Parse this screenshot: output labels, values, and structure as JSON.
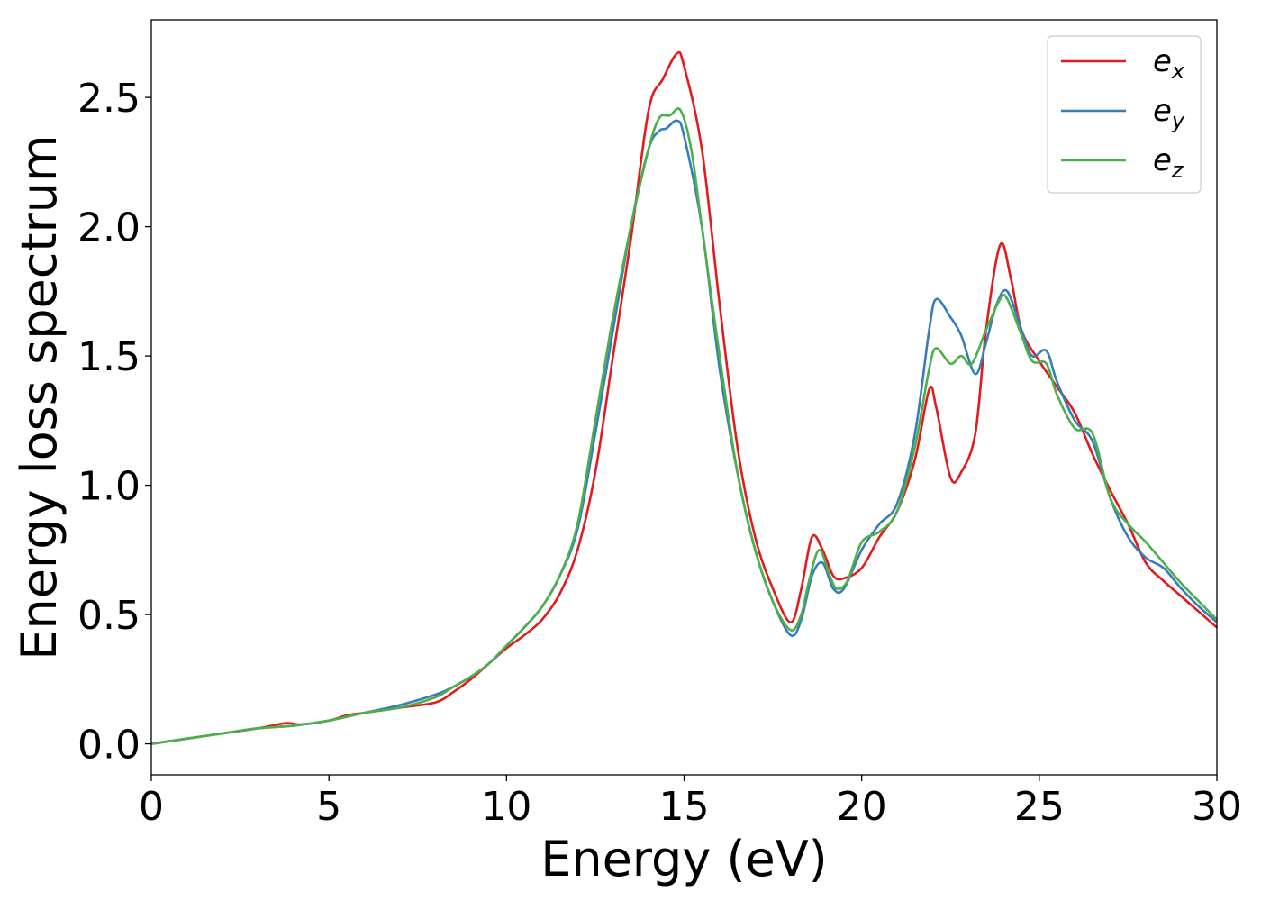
{
  "chart_data": {
    "type": "line",
    "xlabel": "Energy (eV)",
    "ylabel": "Energy loss spectrum",
    "xlim": [
      0,
      30
    ],
    "ylim": [
      -0.12,
      2.8
    ],
    "xticks": [
      0,
      5,
      10,
      15,
      20,
      25,
      30
    ],
    "xtick_labels": [
      "0",
      "5",
      "10",
      "15",
      "20",
      "25",
      "30"
    ],
    "yticks": [
      0.0,
      0.5,
      1.0,
      1.5,
      2.0,
      2.5
    ],
    "ytick_labels": [
      "0.0",
      "0.5",
      "1.0",
      "1.5",
      "2.0",
      "2.5"
    ],
    "grid": false,
    "legend_position": "top-right",
    "series": [
      {
        "name": "e",
        "subscript": "x",
        "color": "#e41a1c",
        "x": [
          0,
          1,
          2,
          3,
          3.8,
          4.2,
          5,
          5.5,
          6,
          7,
          8,
          8.5,
          9,
          9.5,
          10,
          10.5,
          11,
          11.5,
          12,
          12.5,
          13,
          13.5,
          14,
          14.4,
          14.8,
          15,
          15.5,
          16,
          16.5,
          17,
          17.5,
          18,
          18.3,
          18.6,
          18.9,
          19.2,
          19.5,
          20,
          20.5,
          21,
          21.5,
          21.9,
          22.1,
          22.5,
          22.8,
          23.2,
          23.5,
          23.9,
          24.2,
          24.5,
          25,
          25.5,
          26,
          26.5,
          27,
          27.5,
          28,
          28.5,
          29,
          29.5,
          30
        ],
        "y": [
          0,
          0.02,
          0.04,
          0.06,
          0.08,
          0.075,
          0.09,
          0.11,
          0.12,
          0.14,
          0.16,
          0.2,
          0.25,
          0.31,
          0.37,
          0.42,
          0.48,
          0.58,
          0.75,
          1.05,
          1.5,
          1.95,
          2.45,
          2.57,
          2.67,
          2.62,
          2.3,
          1.7,
          1.15,
          0.8,
          0.6,
          0.47,
          0.6,
          0.8,
          0.75,
          0.65,
          0.64,
          0.68,
          0.8,
          0.9,
          1.1,
          1.37,
          1.3,
          1.03,
          1.05,
          1.2,
          1.6,
          1.93,
          1.8,
          1.6,
          1.48,
          1.38,
          1.28,
          1.12,
          0.98,
          0.85,
          0.7,
          0.63,
          0.57,
          0.51,
          0.45
        ]
      },
      {
        "name": "e",
        "subscript": "y",
        "color": "#377eb8",
        "x": [
          0,
          1,
          2,
          3,
          4,
          5,
          6,
          7,
          8,
          8.5,
          9,
          9.5,
          10,
          10.5,
          11,
          11.5,
          12,
          12.5,
          13,
          13.5,
          14,
          14.3,
          14.5,
          14.8,
          15,
          15.5,
          16,
          16.5,
          17,
          17.5,
          18,
          18.3,
          18.6,
          18.9,
          19.2,
          19.5,
          20,
          20.5,
          21,
          21.5,
          21.9,
          22.1,
          22.5,
          22.8,
          23.2,
          23.5,
          23.8,
          24.1,
          24.5,
          24.8,
          25.2,
          25.5,
          26,
          26.5,
          27,
          27.5,
          28,
          28.5,
          29,
          29.5,
          30
        ],
        "y": [
          0,
          0.02,
          0.04,
          0.06,
          0.07,
          0.09,
          0.12,
          0.15,
          0.19,
          0.22,
          0.26,
          0.31,
          0.38,
          0.45,
          0.53,
          0.65,
          0.83,
          1.2,
          1.6,
          2.0,
          2.3,
          2.37,
          2.38,
          2.41,
          2.35,
          2.0,
          1.45,
          1.05,
          0.75,
          0.55,
          0.42,
          0.48,
          0.65,
          0.7,
          0.6,
          0.6,
          0.75,
          0.85,
          0.93,
          1.2,
          1.6,
          1.72,
          1.65,
          1.58,
          1.43,
          1.55,
          1.7,
          1.75,
          1.6,
          1.5,
          1.52,
          1.4,
          1.25,
          1.17,
          0.95,
          0.8,
          0.72,
          0.68,
          0.6,
          0.53,
          0.47
        ]
      },
      {
        "name": "e",
        "subscript": "z",
        "color": "#4daf4a",
        "x": [
          0,
          1,
          2,
          3,
          4,
          5,
          6,
          7,
          8,
          8.5,
          9,
          9.5,
          10,
          10.5,
          11,
          11.5,
          12,
          12.5,
          13,
          13.5,
          14,
          14.3,
          14.6,
          14.9,
          15.2,
          15.5,
          16,
          16.5,
          17,
          17.5,
          18,
          18.3,
          18.5,
          18.8,
          19.1,
          19.3,
          19.6,
          20,
          20.5,
          21,
          21.5,
          21.9,
          22.1,
          22.5,
          22.8,
          23.1,
          23.5,
          23.9,
          24.1,
          24.5,
          24.8,
          25.2,
          25.5,
          26,
          26.5,
          27,
          27.5,
          28,
          28.5,
          29,
          29.5,
          30
        ],
        "y": [
          0,
          0.02,
          0.04,
          0.06,
          0.07,
          0.09,
          0.12,
          0.14,
          0.18,
          0.22,
          0.26,
          0.31,
          0.38,
          0.45,
          0.53,
          0.65,
          0.85,
          1.25,
          1.65,
          2.0,
          2.3,
          2.42,
          2.43,
          2.45,
          2.3,
          2.0,
          1.5,
          1.05,
          0.75,
          0.55,
          0.44,
          0.5,
          0.62,
          0.75,
          0.65,
          0.6,
          0.63,
          0.78,
          0.82,
          0.9,
          1.15,
          1.45,
          1.53,
          1.47,
          1.5,
          1.47,
          1.6,
          1.72,
          1.72,
          1.58,
          1.48,
          1.47,
          1.35,
          1.22,
          1.2,
          0.95,
          0.85,
          0.78,
          0.7,
          0.62,
          0.55,
          0.48
        ]
      }
    ]
  },
  "legend": {
    "entries": [
      {
        "symbol": "e",
        "subscript": "x"
      },
      {
        "symbol": "e",
        "subscript": "y"
      },
      {
        "symbol": "e",
        "subscript": "z"
      }
    ]
  }
}
